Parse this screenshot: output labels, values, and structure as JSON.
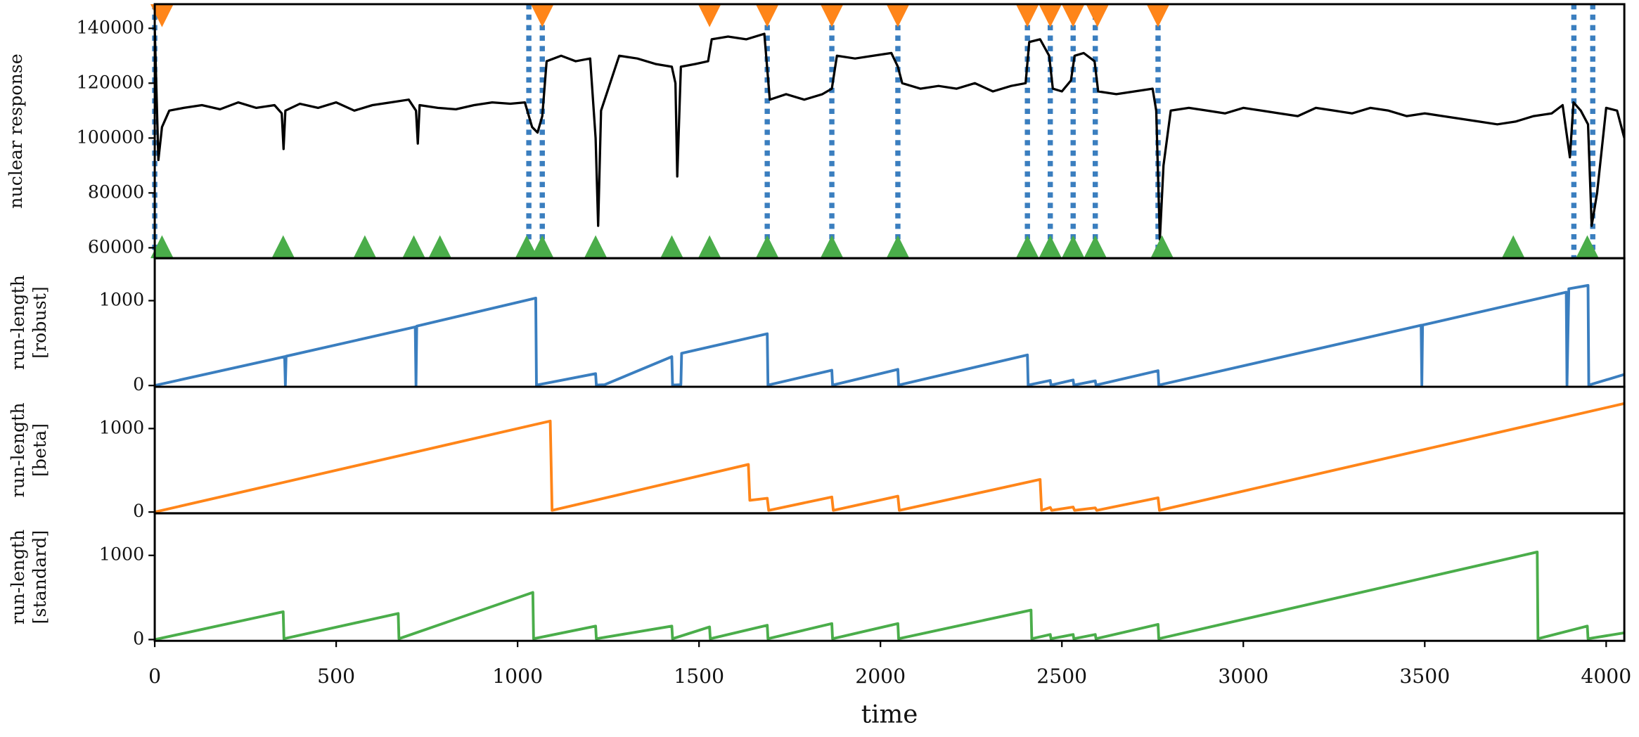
{
  "chart_data": [
    {
      "type": "line",
      "ylabel": "nuclear response",
      "color": "#000000",
      "xlim": [
        0,
        4050
      ],
      "ylim": [
        56200,
        148800
      ],
      "yticks": [
        60000,
        80000,
        100000,
        120000,
        140000
      ],
      "x": [
        0,
        10,
        20,
        40,
        80,
        130,
        180,
        230,
        280,
        330,
        350,
        355,
        360,
        400,
        450,
        500,
        550,
        600,
        650,
        700,
        720,
        725,
        730,
        780,
        830,
        880,
        930,
        980,
        1020,
        1040,
        1055,
        1068,
        1080,
        1120,
        1160,
        1200,
        1215,
        1222,
        1230,
        1280,
        1330,
        1380,
        1425,
        1435,
        1440,
        1450,
        1490,
        1525,
        1535,
        1580,
        1630,
        1680,
        1695,
        1740,
        1790,
        1840,
        1866,
        1880,
        1930,
        1980,
        2030,
        2048,
        2060,
        2110,
        2160,
        2210,
        2260,
        2310,
        2360,
        2400,
        2410,
        2440,
        2465,
        2475,
        2500,
        2525,
        2535,
        2560,
        2590,
        2600,
        2650,
        2700,
        2750,
        2760,
        2770,
        2780,
        2800,
        2850,
        2900,
        2950,
        3000,
        3050,
        3100,
        3150,
        3200,
        3250,
        3300,
        3350,
        3400,
        3450,
        3500,
        3550,
        3600,
        3650,
        3700,
        3750,
        3800,
        3850,
        3880,
        3900,
        3910,
        3930,
        3950,
        3960,
        3975,
        4000,
        4030,
        4050
      ],
      "values": [
        140000,
        92000,
        104000,
        110000,
        111000,
        112000,
        110500,
        113000,
        111000,
        112000,
        109000,
        96000,
        110000,
        112500,
        111000,
        113000,
        110000,
        112000,
        113000,
        114000,
        110000,
        98000,
        112000,
        111000,
        110500,
        112000,
        113000,
        112500,
        113000,
        104000,
        102000,
        108000,
        128000,
        130000,
        128000,
        129000,
        100000,
        68000,
        110000,
        130000,
        129000,
        127000,
        126000,
        120000,
        86000,
        126000,
        127000,
        128000,
        136000,
        137000,
        136000,
        138000,
        114000,
        116000,
        114000,
        116000,
        118000,
        130000,
        129000,
        130000,
        131000,
        126000,
        120000,
        118000,
        119000,
        118000,
        120000,
        117000,
        119000,
        120000,
        135000,
        136000,
        130000,
        118000,
        117000,
        121000,
        130000,
        131000,
        128000,
        117000,
        116000,
        117000,
        118000,
        110000,
        63000,
        90000,
        110000,
        111000,
        110000,
        109000,
        111000,
        110000,
        109000,
        108000,
        111000,
        110000,
        109000,
        111000,
        110000,
        108000,
        109000,
        108000,
        107000,
        106000,
        105000,
        106000,
        108000,
        109000,
        112000,
        93000,
        113000,
        110000,
        105000,
        68000,
        80000,
        111000,
        110000,
        100000
      ],
      "changepoints": [
        0,
        1031,
        1068,
        1688,
        1866,
        2048,
        2405,
        2468,
        2531,
        2592,
        2765,
        3911,
        3963
      ],
      "changepoint_color": "#3a7ebf",
      "top_markers": [
        20,
        1068,
        1529,
        1688,
        1866,
        2048,
        2405,
        2468,
        2531,
        2598,
        2765
      ],
      "top_marker_color": "#ff8519",
      "bottom_markers": [
        20,
        354,
        579,
        714,
        786,
        1025,
        1068,
        1215,
        1425,
        1529,
        1688,
        1866,
        2048,
        2405,
        2468,
        2531,
        2592,
        2776,
        3744,
        3948
      ],
      "bottom_marker_color": "#4aad4a"
    },
    {
      "type": "line",
      "ylabel": [
        "run-length",
        "[robust]"
      ],
      "color": "#3a7ebf",
      "xlim": [
        0,
        4050
      ],
      "ylim": [
        -15,
        1500
      ],
      "yticks": [
        0,
        1000
      ],
      "x": [
        0,
        358,
        360,
        362,
        718,
        720,
        722,
        1050,
        1052,
        1215,
        1217,
        1240,
        1425,
        1427,
        1450,
        1452,
        1688,
        1690,
        1866,
        1868,
        2048,
        2050,
        2405,
        2407,
        2468,
        2470,
        2531,
        2533,
        2592,
        2594,
        2765,
        2767,
        3490,
        3492,
        3494,
        3890,
        3892,
        3897,
        3950,
        3952,
        4050
      ],
      "values": [
        0,
        340,
        5,
        345,
        690,
        5,
        700,
        1030,
        5,
        140,
        5,
        10,
        340,
        5,
        10,
        380,
        610,
        5,
        180,
        5,
        190,
        5,
        360,
        5,
        60,
        5,
        65,
        5,
        55,
        5,
        175,
        5,
        710,
        5,
        712,
        1100,
        5,
        1140,
        1180,
        5,
        130
      ]
    },
    {
      "type": "line",
      "ylabel": [
        "run-length",
        "[beta]"
      ],
      "color": "#ff8519",
      "xlim": [
        0,
        4050
      ],
      "ylim": [
        -15,
        1500
      ],
      "yticks": [
        0,
        1000
      ],
      "x": [
        0,
        1090,
        1095,
        1636,
        1640,
        1688,
        1692,
        1866,
        1870,
        2048,
        2052,
        2440,
        2444,
        2468,
        2472,
        2531,
        2535,
        2592,
        2596,
        2765,
        2769,
        4050
      ],
      "values": [
        0,
        1090,
        20,
        570,
        140,
        165,
        20,
        180,
        20,
        190,
        20,
        390,
        20,
        55,
        20,
        60,
        20,
        50,
        20,
        170,
        20,
        1300
      ]
    },
    {
      "type": "line",
      "ylabel": [
        "run-length",
        "[standard]"
      ],
      "color": "#4aad4a",
      "xlim": [
        0,
        4050
      ],
      "ylim": [
        -15,
        1500
      ],
      "yticks": [
        0,
        1000
      ],
      "xlabel": "time",
      "xticks": [
        0,
        500,
        1000,
        1500,
        2000,
        2500,
        3000,
        3500,
        4000
      ],
      "x": [
        0,
        354,
        356,
        671,
        673,
        1042,
        1044,
        1215,
        1217,
        1425,
        1427,
        1529,
        1531,
        1688,
        1690,
        1866,
        1868,
        2048,
        2050,
        2415,
        2417,
        2468,
        2470,
        2531,
        2533,
        2592,
        2594,
        2765,
        2767,
        3810,
        3812,
        3948,
        3950,
        4050
      ],
      "values": [
        0,
        330,
        10,
        310,
        10,
        560,
        10,
        160,
        10,
        160,
        10,
        150,
        10,
        170,
        10,
        190,
        10,
        190,
        10,
        350,
        10,
        60,
        10,
        60,
        10,
        60,
        10,
        180,
        10,
        1040,
        10,
        160,
        10,
        80
      ]
    }
  ]
}
